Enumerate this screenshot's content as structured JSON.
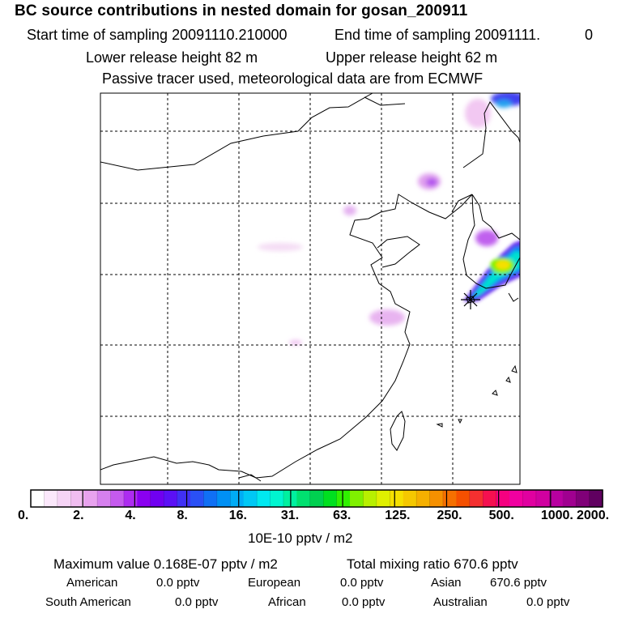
{
  "header": {
    "title": "BC  source contributions in nested domain for gosan_200911",
    "start_label": "Start time of sampling 20091110.210000",
    "end_label": "End time of sampling 20091111.",
    "end_suffix": "0",
    "lower_release": "Lower release height   82 m",
    "upper_release": "Upper release height   62 m",
    "tracer_note": "Passive tracer used, meteorological data are from ECMWF"
  },
  "colorbar": {
    "ticks": [
      "0.",
      "2.",
      "4.",
      "8.",
      "16.",
      "31.",
      "63.",
      "125.",
      "250.",
      "500.",
      "1000.",
      "2000."
    ],
    "units": "10E-10 pptv / m2",
    "colors": [
      "#ffffff",
      "#fbe8fb",
      "#f6d4f6",
      "#f0bdf0",
      "#e8a2ee",
      "#d680ee",
      "#c55aee",
      "#ad2cf0",
      "#8a00f0",
      "#7000f0",
      "#5b10f5",
      "#4030f5",
      "#2a50f5",
      "#1070f5",
      "#0090f5",
      "#00acf5",
      "#00c8f5",
      "#00e8f0",
      "#00f5d0",
      "#00f0a0",
      "#00e070",
      "#00d050",
      "#00e020",
      "#30f000",
      "#80f000",
      "#b8f000",
      "#e0f000",
      "#f5e000",
      "#f5c800",
      "#f5b000",
      "#f59000",
      "#f57000",
      "#f55000",
      "#f53030",
      "#f51050",
      "#f50080",
      "#f000a0",
      "#e000a0",
      "#d000a0",
      "#b800a0",
      "#a00090",
      "#800078",
      "#600060"
    ]
  },
  "stats": {
    "maximum": "Maximum value  0.168E-07 pptv / m2",
    "total": "Total mixing ratio      670.6 pptv",
    "regions": [
      {
        "name": "American",
        "value": "0.0 pptv"
      },
      {
        "name": "European",
        "value": "0.0 pptv"
      },
      {
        "name": "Asian",
        "value": "670.6 pptv"
      },
      {
        "name": "South American",
        "value": "0.0 pptv"
      },
      {
        "name": "African",
        "value": "0.0 pptv"
      },
      {
        "name": "Australian",
        "value": "0.0 pptv"
      }
    ]
  },
  "map_colors": {
    "coast": "#000000",
    "grid": "#000000",
    "release_marker": "#000000"
  }
}
